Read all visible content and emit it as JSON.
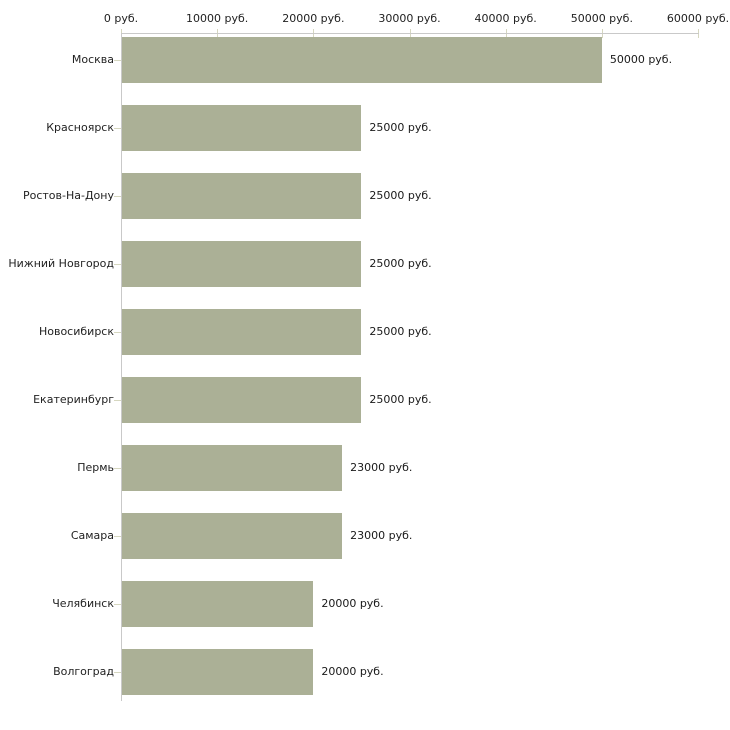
{
  "chart_data": {
    "type": "bar",
    "orientation": "horizontal",
    "title": "",
    "xlabel": "",
    "ylabel": "",
    "xlim": [
      0,
      60000
    ],
    "grid": false,
    "legend": null,
    "x_ticks": [
      {
        "value": 0,
        "label": "0 руб."
      },
      {
        "value": 10000,
        "label": "10000 руб."
      },
      {
        "value": 20000,
        "label": "20000 руб."
      },
      {
        "value": 30000,
        "label": "30000 руб."
      },
      {
        "value": 40000,
        "label": "40000 руб."
      },
      {
        "value": 50000,
        "label": "50000 руб."
      },
      {
        "value": 60000,
        "label": "60000 руб."
      }
    ],
    "categories": [
      "Москва",
      "Красноярск",
      "Ростов-На-Дону",
      "Нижний Новгород",
      "Новосибирск",
      "Екатеринбург",
      "Пермь",
      "Самара",
      "Челябинск",
      "Волгоград"
    ],
    "values": [
      50000,
      25000,
      25000,
      25000,
      25000,
      25000,
      23000,
      23000,
      20000,
      20000
    ],
    "value_labels": [
      "50000 руб.",
      "25000 руб.",
      "25000 руб.",
      "25000 руб.",
      "25000 руб.",
      "25000 руб.",
      "23000 руб.",
      "23000 руб.",
      "20000 руб.",
      "20000 руб."
    ],
    "colors": {
      "bar": "#abb096",
      "axis_line": "#c9c9c9",
      "tick_mark": "#d6d7c0",
      "axis_text": "#222222",
      "value_text": "#1a1a1a",
      "background": "#ffffff"
    }
  }
}
